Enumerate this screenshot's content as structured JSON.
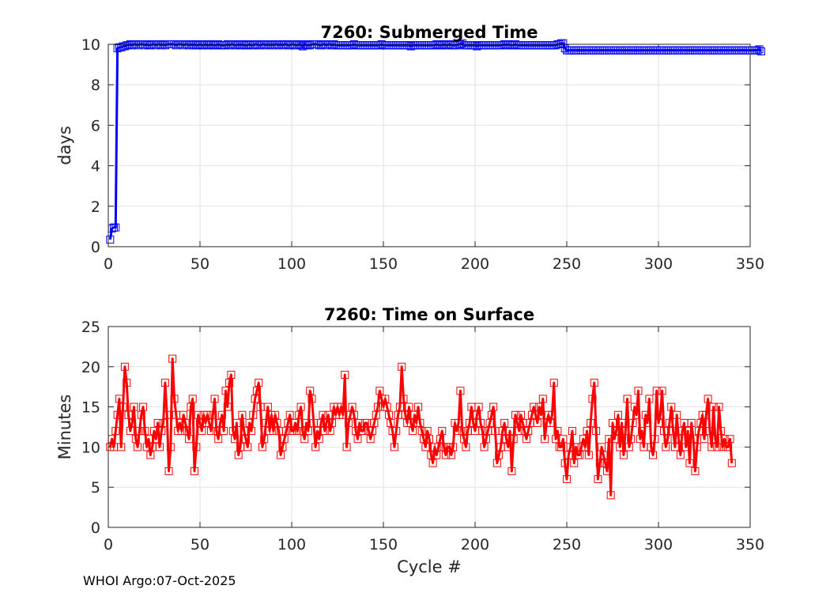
{
  "footer": "WHOI Argo:07-Oct-2025",
  "chart_data": [
    {
      "type": "line",
      "title": "7260: Submerged Time",
      "xlabel": "",
      "ylabel": "days",
      "xlim": [
        0,
        350
      ],
      "ylim": [
        0,
        10
      ],
      "xticks": [
        0,
        50,
        100,
        150,
        200,
        250,
        300,
        350
      ],
      "yticks": [
        0,
        2,
        4,
        6,
        8,
        10
      ],
      "grid": true,
      "color": "#0000ff",
      "marker": "square",
      "series": [
        {
          "name": "Submerged Time",
          "x_start": 1,
          "values": [
            0.35,
            0.9,
            0.95,
            0.95,
            9.8,
            9.85,
            9.85,
            9.9,
            9.9,
            9.95,
            9.95,
            10.0,
            9.95,
            10.0,
            10.0,
            9.95,
            10.0,
            10.0,
            10.0,
            9.95,
            10.0,
            9.95,
            9.95,
            10.0,
            10.0,
            9.95,
            10.0,
            10.0,
            9.95,
            10.0,
            9.95,
            10.0,
            10.0,
            10.0,
            10.0,
            10.0,
            9.95,
            10.0,
            10.0,
            10.0,
            9.95,
            10.0,
            10.0,
            9.95,
            10.0,
            9.95,
            10.0,
            9.95,
            9.95,
            10.0,
            9.95,
            9.95,
            10.0,
            9.95,
            9.95,
            10.0,
            9.95,
            9.95,
            9.95,
            10.0,
            9.95,
            9.95,
            9.95,
            9.95,
            10.0,
            9.95,
            10.0,
            10.0,
            9.95,
            9.95,
            10.0,
            9.95,
            10.0,
            9.95,
            9.95,
            9.95,
            10.0,
            9.95,
            9.95,
            10.0,
            10.0,
            9.95,
            9.95,
            10.0,
            10.0,
            9.95,
            10.0,
            9.95,
            10.0,
            9.95,
            10.0,
            10.0,
            9.95,
            10.0,
            9.95,
            10.0,
            10.0,
            9.95,
            9.95,
            10.0,
            10.0,
            9.95,
            9.95,
            10.0,
            9.95,
            9.9,
            10.0,
            9.95,
            9.95,
            9.95,
            10.0,
            10.0,
            10.0,
            10.0,
            9.95,
            9.95,
            10.0,
            10.0,
            9.95,
            10.0,
            10.0,
            9.95,
            10.0,
            9.95,
            9.95,
            9.95,
            9.95,
            9.95,
            9.95,
            9.95,
            9.95,
            9.95,
            9.95,
            10.0,
            9.95,
            9.95,
            9.95,
            9.95,
            9.95,
            9.95,
            9.95,
            9.95,
            9.95,
            9.95,
            9.95,
            9.95,
            9.95,
            9.95,
            10.0,
            9.95,
            9.95,
            9.95,
            9.95,
            9.95,
            9.95,
            9.95,
            9.95,
            9.95,
            9.95,
            9.95,
            9.95,
            9.95,
            9.95,
            9.95,
            9.9,
            9.95,
            9.95,
            9.95,
            9.95,
            9.95,
            9.95,
            9.95,
            9.95,
            9.95,
            9.95,
            9.95,
            9.95,
            9.95,
            10.0,
            9.95,
            9.95,
            9.95,
            10.0,
            9.95,
            9.95,
            10.0,
            9.95,
            9.95,
            9.95,
            9.95,
            10.0,
            10.0,
            10.05,
            9.95,
            9.95,
            9.95,
            9.95,
            9.95,
            9.95,
            9.95,
            9.9,
            9.95,
            9.95,
            9.95,
            9.95,
            9.95,
            9.95,
            9.95,
            9.95,
            9.95,
            9.95,
            9.95,
            9.95,
            9.95,
            9.95,
            10.0,
            9.95,
            10.0,
            9.95,
            9.95,
            9.95,
            10.0,
            9.95,
            9.95,
            9.95,
            9.95,
            9.95,
            9.95,
            9.95,
            9.95,
            9.95,
            9.95,
            9.95,
            9.95,
            9.95,
            9.95,
            9.95,
            9.95,
            9.95,
            9.95,
            9.95,
            9.95,
            9.95,
            9.95,
            10.0,
            10.0,
            10.05,
            10.05,
            9.8,
            9.7,
            9.7,
            9.7,
            9.7,
            9.7,
            9.7,
            9.7,
            9.7,
            9.7,
            9.7,
            9.7,
            9.7,
            9.7,
            9.7,
            9.7,
            9.7,
            9.7,
            9.7,
            9.7,
            9.7,
            9.7,
            9.7,
            9.7,
            9.7,
            9.7,
            9.7,
            9.7,
            9.7,
            9.7,
            9.7,
            9.7,
            9.7,
            9.7,
            9.7,
            9.7,
            9.7,
            9.7,
            9.7,
            9.7,
            9.7,
            9.7,
            9.7,
            9.7,
            9.7,
            9.7,
            9.7,
            9.7,
            9.7,
            9.7,
            9.7,
            9.7,
            9.7,
            9.7,
            9.7,
            9.7,
            9.7,
            9.7,
            9.7,
            9.7,
            9.7,
            9.7,
            9.7,
            9.7,
            9.7,
            9.7,
            9.7,
            9.7,
            9.7,
            9.7,
            9.7,
            9.7,
            9.7,
            9.7,
            9.7,
            9.7,
            9.7,
            9.7,
            9.7,
            9.7,
            9.7,
            9.7,
            9.7,
            9.7,
            9.7,
            9.7,
            9.7,
            9.7,
            9.7,
            9.7,
            9.7,
            9.7,
            9.7,
            9.7,
            9.7,
            9.7,
            9.7,
            9.7,
            9.7,
            9.7,
            9.7,
            9.7,
            9.7,
            9.7,
            9.7,
            9.7,
            9.75,
            9.65
          ]
        }
      ]
    },
    {
      "type": "line",
      "title": "7260: Time on Surface",
      "xlabel": "Cycle #",
      "ylabel": "Minutes",
      "xlim": [
        0,
        350
      ],
      "ylim": [
        0,
        25
      ],
      "xticks": [
        0,
        50,
        100,
        150,
        200,
        250,
        300,
        350
      ],
      "yticks": [
        0,
        5,
        10,
        15,
        20,
        25
      ],
      "grid": true,
      "color": "#ff0000",
      "marker": "square",
      "series": [
        {
          "name": "Time on Surface",
          "x_start": 1,
          "values": [
            10,
            11,
            10,
            12,
            14,
            16,
            10,
            15,
            20,
            18,
            14,
            12,
            13,
            15,
            11,
            10,
            12,
            14,
            15,
            12,
            10,
            11,
            9,
            10,
            12,
            11,
            13,
            10,
            12,
            13,
            18,
            14,
            7,
            10,
            21,
            16,
            14,
            12,
            13,
            12,
            14,
            13,
            12,
            11,
            15,
            16,
            7,
            10,
            14,
            13,
            12,
            14,
            13,
            14,
            13,
            12,
            14,
            16,
            12,
            11,
            13,
            14,
            12,
            17,
            15,
            18,
            19,
            12,
            11,
            13,
            9,
            10,
            14,
            12,
            11,
            10,
            13,
            12,
            14,
            16,
            17,
            18,
            15,
            10,
            11,
            13,
            15,
            12,
            14,
            12,
            14,
            13,
            12,
            9,
            10,
            11,
            12,
            13,
            14,
            12,
            12,
            13,
            12,
            14,
            15,
            12,
            11,
            13,
            12,
            17,
            16,
            13,
            10,
            12,
            11,
            13,
            14,
            12,
            13,
            14,
            12,
            13,
            15,
            14,
            15,
            14,
            15,
            14,
            19,
            10,
            13,
            14,
            15,
            14,
            12,
            11,
            13,
            12,
            12,
            13,
            13,
            12,
            11,
            12,
            13,
            14,
            15,
            17,
            16,
            15,
            16,
            15,
            14,
            13,
            12,
            10,
            12,
            14,
            15,
            20,
            16,
            14,
            13,
            15,
            13,
            12,
            14,
            13,
            15,
            13,
            12,
            11,
            10,
            12,
            11,
            9,
            8,
            10,
            9,
            10,
            11,
            12,
            10,
            9,
            10,
            10,
            9,
            10,
            13,
            12,
            13,
            17,
            12,
            11,
            10,
            12,
            13,
            15,
            13,
            12,
            14,
            15,
            13,
            12,
            10,
            11,
            12,
            13,
            14,
            15,
            12,
            8,
            9,
            10,
            12,
            13,
            11,
            10,
            12,
            7,
            11,
            14,
            13,
            12,
            14,
            13,
            12,
            11,
            12,
            13,
            14,
            15,
            14,
            13,
            15,
            14,
            16,
            11,
            13,
            14,
            13,
            14,
            18,
            11,
            12,
            10,
            10,
            11,
            8,
            6,
            9,
            10,
            12,
            8,
            10,
            9,
            9,
            10,
            11,
            10,
            12,
            9,
            13,
            16,
            18,
            12,
            6,
            8,
            10,
            9,
            8,
            7,
            11,
            4,
            13,
            11,
            12,
            14,
            10,
            13,
            9,
            12,
            16,
            10,
            11,
            13,
            15,
            14,
            17,
            11,
            12,
            10,
            14,
            13,
            16,
            10,
            9,
            11,
            17,
            13,
            14,
            17,
            12,
            10,
            11,
            13,
            15,
            12,
            10,
            14,
            11,
            9,
            12,
            13,
            10,
            12,
            8,
            13,
            11,
            7,
            10,
            12,
            13,
            14,
            11,
            14,
            16,
            12,
            10,
            15,
            11,
            10,
            15,
            12,
            10,
            11,
            10,
            10,
            11,
            8
          ]
        }
      ]
    }
  ]
}
